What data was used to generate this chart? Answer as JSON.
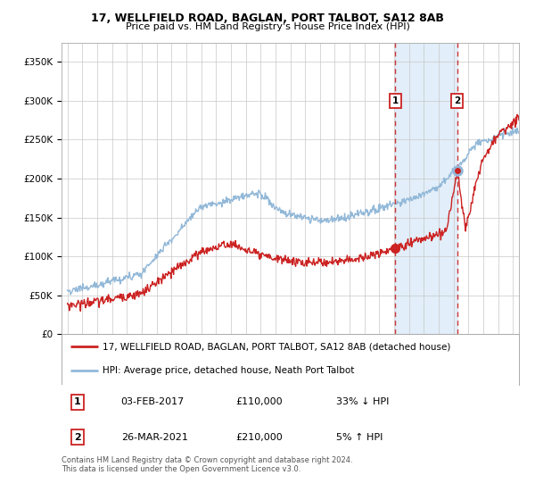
{
  "title1": "17, WELLFIELD ROAD, BAGLAN, PORT TALBOT, SA12 8AB",
  "title2": "Price paid vs. HM Land Registry's House Price Index (HPI)",
  "legend_line1": "17, WELLFIELD ROAD, BAGLAN, PORT TALBOT, SA12 8AB (detached house)",
  "legend_line2": "HPI: Average price, detached house, Neath Port Talbot",
  "annotation1_label": "1",
  "annotation1_date": "03-FEB-2017",
  "annotation1_price": "£110,000",
  "annotation1_hpi": "33% ↓ HPI",
  "annotation2_label": "2",
  "annotation2_date": "26-MAR-2021",
  "annotation2_price": "£210,000",
  "annotation2_hpi": "5% ↑ HPI",
  "footnote": "Contains HM Land Registry data © Crown copyright and database right 2024.\nThis data is licensed under the Open Government Licence v3.0.",
  "hpi_color": "#92b8d8",
  "price_color": "#cc2222",
  "dot_color": "#cc2222",
  "dot_border": "#92b8d8",
  "annotation_box_color": "#cc2222",
  "vline_color": "#cc2222",
  "shade_color": "#d6e8f7",
  "ylim": [
    0,
    375000
  ],
  "yticks": [
    0,
    50000,
    100000,
    150000,
    200000,
    250000,
    300000,
    350000
  ],
  "point1_x": 2017.08,
  "point1_y": 110000,
  "point2_x": 2021.23,
  "point2_y": 210000,
  "shade_start": 2017.08,
  "shade_end": 2021.23,
  "xlim_left": 1994.6,
  "xlim_right": 2025.4
}
